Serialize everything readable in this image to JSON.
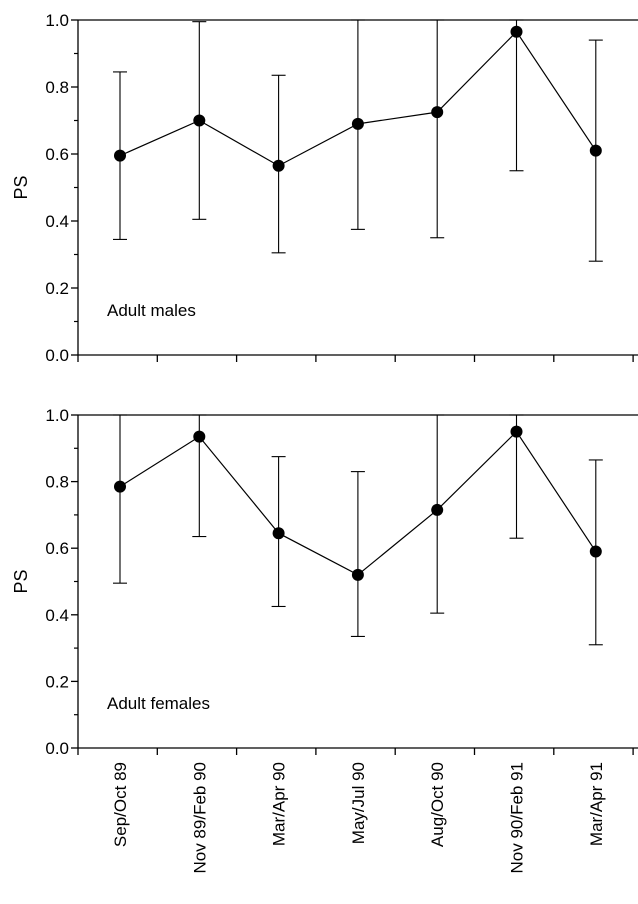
{
  "chart_data": [
    {
      "type": "line",
      "error_bars": true,
      "ylabel": "PS",
      "annotation": "Adult males",
      "ylim": [
        0.0,
        1.0
      ],
      "yticks": [
        "0.0",
        "0.2",
        "0.4",
        "0.6",
        "0.8",
        "1.0"
      ],
      "categories": [
        "Sep/Oct 89",
        "Nov 89/Feb 90",
        "Mar/Apr 90",
        "May/Jul 90",
        "Aug/Oct 90",
        "Nov 90/Feb 91",
        "Mar/Apr 91"
      ],
      "series": [
        {
          "values": [
            0.595,
            0.7,
            0.565,
            0.69,
            0.725,
            0.965,
            0.61
          ],
          "lower": [
            0.345,
            0.405,
            0.305,
            0.375,
            0.35,
            0.55,
            0.28
          ],
          "upper": [
            0.845,
            0.995,
            0.835,
            1.0,
            1.0,
            1.0,
            0.94
          ]
        }
      ]
    },
    {
      "type": "line",
      "error_bars": true,
      "ylabel": "PS",
      "annotation": "Adult females",
      "ylim": [
        0.0,
        1.0
      ],
      "yticks": [
        "0.0",
        "0.2",
        "0.4",
        "0.6",
        "0.8",
        "1.0"
      ],
      "categories": [
        "Sep/Oct 89",
        "Nov 89/Feb 90",
        "Mar/Apr 90",
        "May/Jul 90",
        "Aug/Oct 90",
        "Nov 90/Feb 91",
        "Mar/Apr 91"
      ],
      "series": [
        {
          "values": [
            0.785,
            0.935,
            0.645,
            0.52,
            0.715,
            0.95,
            0.59
          ],
          "lower": [
            0.495,
            0.635,
            0.425,
            0.335,
            0.405,
            0.63,
            0.31
          ],
          "upper": [
            1.0,
            1.0,
            0.875,
            0.83,
            1.0,
            1.0,
            0.865
          ]
        }
      ]
    }
  ]
}
